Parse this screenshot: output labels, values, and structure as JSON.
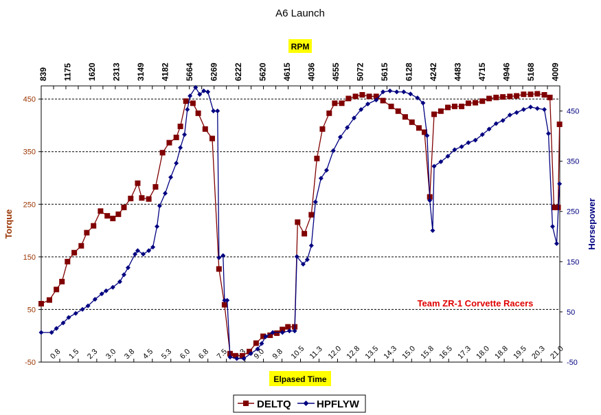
{
  "chart_data": {
    "type": "line",
    "title": "A6 Launch",
    "xlabel": "Elpased Time",
    "x2label": "RPM",
    "ylabel": "Torque",
    "y2label": "Horsepower",
    "annotation": "Team ZR-1 Corvette Racers",
    "xlim": [
      0.5,
      22.0
    ],
    "ylim": [
      -50,
      475
    ],
    "y2lim": [
      -50,
      500
    ],
    "yticks": [
      -50,
      50,
      150,
      250,
      350,
      450
    ],
    "y2ticks": [
      -50,
      50,
      150,
      250,
      350,
      450
    ],
    "grid": "horizontal dashed",
    "legend_placement": "bottom",
    "xtick_labels": [
      "0.8",
      "1.5",
      "2.3",
      "3.0",
      "3.8",
      "4.5",
      "5.3",
      "6.0",
      "6.8",
      "7.5",
      "8.3",
      "9.0",
      "9.8",
      "10.5",
      "11.3",
      "12.0",
      "12.8",
      "13.5",
      "14.3",
      "15.0",
      "15.8",
      "16.5",
      "17.3",
      "18.0",
      "18.8",
      "19.5",
      "20.3",
      "21.0"
    ],
    "x2tick_labels": [
      "839",
      "1175",
      "1620",
      "2313",
      "3149",
      "4182",
      "5664",
      "6269",
      "6222",
      "5620",
      "4615",
      "4036",
      "4555",
      "5072",
      "5615",
      "6128",
      "4242",
      "4483",
      "4715",
      "4946",
      "5168",
      "4009"
    ],
    "series": [
      {
        "name": "DELTQ",
        "axis": "left",
        "color": "#800000",
        "marker": "square",
        "x": [
          0.5,
          0.84,
          1.13,
          1.36,
          1.59,
          1.87,
          2.16,
          2.39,
          2.67,
          2.96,
          3.24,
          3.47,
          3.7,
          3.93,
          4.21,
          4.5,
          4.67,
          4.96,
          5.24,
          5.53,
          5.81,
          6.1,
          6.27,
          6.5,
          6.79,
          7.01,
          7.3,
          7.59,
          7.87,
          8.1,
          8.33,
          8.56,
          8.84,
          9.13,
          9.41,
          9.7,
          9.99,
          10.27,
          10.5,
          10.73,
          11.01,
          11.13,
          11.41,
          11.7,
          11.93,
          12.16,
          12.44,
          12.67,
          12.96,
          13.24,
          13.53,
          13.81,
          14.1,
          14.39,
          14.67,
          15.01,
          15.3,
          15.59,
          15.87,
          16.16,
          16.39,
          16.61,
          16.79,
          17.07,
          17.36,
          17.64,
          17.93,
          18.21,
          18.5,
          18.79,
          19.07,
          19.36,
          19.64,
          19.93,
          20.21,
          20.5,
          20.79,
          21.07,
          21.36,
          21.59,
          21.76,
          21.93,
          21.99
        ],
        "values": [
          61,
          68,
          88,
          103,
          141,
          158,
          171,
          196,
          209,
          237,
          228,
          223,
          231,
          244,
          261,
          290,
          262,
          260,
          283,
          348,
          367,
          377,
          398,
          446,
          442,
          423,
          393,
          375,
          127,
          59,
          -34,
          -38,
          -38,
          -30,
          -14,
          -1,
          1,
          5,
          12,
          17,
          17,
          216,
          194,
          230,
          337,
          393,
          423,
          442,
          442,
          451,
          455,
          458,
          455,
          455,
          447,
          436,
          427,
          416,
          406,
          395,
          387,
          264,
          421,
          427,
          434,
          436,
          436,
          442,
          443,
          446,
          451,
          453,
          454,
          455,
          456,
          459,
          459,
          460,
          458,
          453,
          244,
          244,
          402
        ]
      },
      {
        "name": "HPFLYW",
        "axis": "right",
        "color": "#000080",
        "marker": "diamond",
        "x": [
          0.5,
          0.93,
          1.13,
          1.41,
          1.64,
          1.93,
          2.21,
          2.44,
          2.73,
          3.01,
          3.19,
          3.47,
          3.76,
          3.93,
          4.1,
          4.39,
          4.5,
          4.73,
          4.96,
          5.13,
          5.3,
          5.41,
          5.64,
          5.87,
          6.1,
          6.27,
          6.44,
          6.56,
          6.67,
          6.9,
          7.07,
          7.24,
          7.41,
          7.64,
          7.81,
          7.87,
          8.04,
          8.1,
          8.21,
          8.33,
          8.61,
          8.9,
          9.19,
          9.47,
          9.64,
          9.81,
          10.1,
          10.5,
          10.79,
          11.01,
          11.1,
          11.36,
          11.53,
          11.7,
          11.87,
          12.1,
          12.33,
          12.61,
          12.9,
          13.19,
          13.47,
          13.76,
          14.04,
          14.39,
          14.67,
          14.96,
          15.24,
          15.53,
          15.81,
          16.1,
          16.33,
          16.5,
          16.61,
          16.73,
          16.79,
          17.07,
          17.36,
          17.64,
          17.93,
          18.21,
          18.5,
          18.79,
          19.07,
          19.36,
          19.64,
          19.93,
          20.21,
          20.5,
          20.79,
          21.07,
          21.36,
          21.53,
          21.7,
          21.87,
          21.99
        ],
        "values": [
          9,
          9,
          17,
          28,
          39,
          47,
          55,
          62,
          75,
          86,
          92,
          99,
          110,
          124,
          138,
          165,
          172,
          165,
          172,
          179,
          220,
          261,
          286,
          318,
          346,
          377,
          403,
          453,
          480,
          497,
          483,
          490,
          488,
          450,
          450,
          158,
          162,
          73,
          73,
          -40,
          -43,
          -43,
          -33,
          -24,
          -13,
          1,
          9,
          9,
          12,
          12,
          160,
          145,
          154,
          182,
          269,
          316,
          332,
          371,
          398,
          417,
          436,
          453,
          464,
          472,
          488,
          490,
          488,
          488,
          484,
          476,
          466,
          401,
          272,
          212,
          340,
          349,
          360,
          373,
          379,
          387,
          392,
          403,
          414,
          425,
          431,
          442,
          447,
          453,
          458,
          455,
          453,
          405,
          220,
          186,
          305
        ]
      }
    ]
  }
}
